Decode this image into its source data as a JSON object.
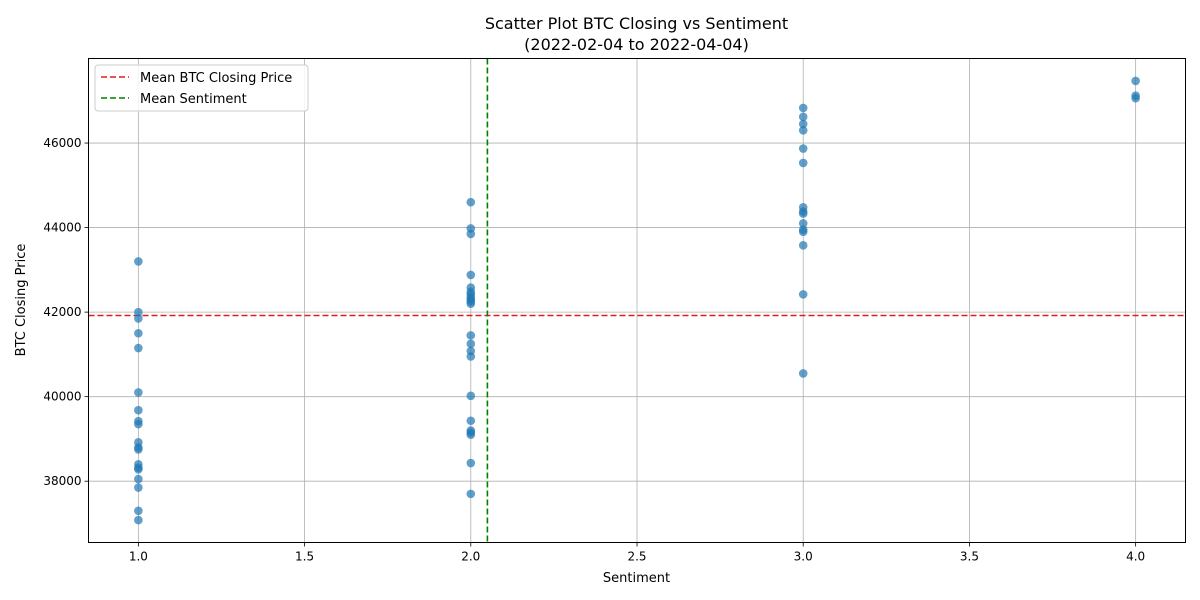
{
  "chart_data": {
    "type": "scatter",
    "title": "Scatter Plot BTC Closing vs Sentiment",
    "subtitle": "(2022-02-04 to 2022-04-04)",
    "xlabel": "Sentiment",
    "ylabel": "BTC Closing Price",
    "xlim": [
      0.85,
      4.15
    ],
    "ylim": [
      36550,
      48000
    ],
    "x_ticks": [
      1.0,
      1.5,
      2.0,
      2.5,
      3.0,
      3.5,
      4.0
    ],
    "x_tick_labels": [
      "1.0",
      "1.5",
      "2.0",
      "2.5",
      "3.0",
      "3.5",
      "4.0"
    ],
    "y_ticks": [
      38000,
      40000,
      42000,
      44000,
      46000
    ],
    "y_tick_labels": [
      "38000",
      "40000",
      "42000",
      "44000",
      "46000"
    ],
    "grid": true,
    "legend_position": "top-left",
    "series": [
      {
        "color": "#1f77b4",
        "points": [
          {
            "x": 1,
            "y": 43200
          },
          {
            "x": 1,
            "y": 42000
          },
          {
            "x": 1,
            "y": 41850
          },
          {
            "x": 1,
            "y": 41500
          },
          {
            "x": 1,
            "y": 41150
          },
          {
            "x": 1,
            "y": 40100
          },
          {
            "x": 1,
            "y": 39680
          },
          {
            "x": 1,
            "y": 39420
          },
          {
            "x": 1,
            "y": 39350
          },
          {
            "x": 1,
            "y": 38920
          },
          {
            "x": 1,
            "y": 38800
          },
          {
            "x": 1,
            "y": 38750
          },
          {
            "x": 1,
            "y": 38400
          },
          {
            "x": 1,
            "y": 38320
          },
          {
            "x": 1,
            "y": 38280
          },
          {
            "x": 1,
            "y": 38050
          },
          {
            "x": 1,
            "y": 37850
          },
          {
            "x": 1,
            "y": 37300
          },
          {
            "x": 1,
            "y": 37080
          },
          {
            "x": 2,
            "y": 44600
          },
          {
            "x": 2,
            "y": 43980
          },
          {
            "x": 2,
            "y": 43850
          },
          {
            "x": 2,
            "y": 42880
          },
          {
            "x": 2,
            "y": 42580
          },
          {
            "x": 2,
            "y": 42480
          },
          {
            "x": 2,
            "y": 42420
          },
          {
            "x": 2,
            "y": 42350
          },
          {
            "x": 2,
            "y": 42300
          },
          {
            "x": 2,
            "y": 42250
          },
          {
            "x": 2,
            "y": 42200
          },
          {
            "x": 2,
            "y": 41450
          },
          {
            "x": 2,
            "y": 41250
          },
          {
            "x": 2,
            "y": 41080
          },
          {
            "x": 2,
            "y": 40950
          },
          {
            "x": 2,
            "y": 40020
          },
          {
            "x": 2,
            "y": 39430
          },
          {
            "x": 2,
            "y": 39200
          },
          {
            "x": 2,
            "y": 39150
          },
          {
            "x": 2,
            "y": 39100
          },
          {
            "x": 2,
            "y": 38430
          },
          {
            "x": 2,
            "y": 37700
          },
          {
            "x": 3,
            "y": 46830
          },
          {
            "x": 3,
            "y": 46620
          },
          {
            "x": 3,
            "y": 46450
          },
          {
            "x": 3,
            "y": 46300
          },
          {
            "x": 3,
            "y": 45870
          },
          {
            "x": 3,
            "y": 45530
          },
          {
            "x": 3,
            "y": 44480
          },
          {
            "x": 3,
            "y": 44380
          },
          {
            "x": 3,
            "y": 44330
          },
          {
            "x": 3,
            "y": 44100
          },
          {
            "x": 3,
            "y": 43950
          },
          {
            "x": 3,
            "y": 43900
          },
          {
            "x": 3,
            "y": 43580
          },
          {
            "x": 3,
            "y": 42420
          },
          {
            "x": 3,
            "y": 40550
          },
          {
            "x": 4,
            "y": 47470
          },
          {
            "x": 4,
            "y": 47120
          },
          {
            "x": 4,
            "y": 47060
          }
        ]
      }
    ],
    "reference_lines": [
      {
        "orientation": "horizontal",
        "value": 41920,
        "color": "#d62728",
        "style": "dashed",
        "label": "Mean BTC Closing Price",
        "stroke": "#e41a1c"
      },
      {
        "orientation": "vertical",
        "value": 2.05,
        "color": "#2ca02c",
        "style": "dashed",
        "label": "Mean Sentiment",
        "stroke": "#008000"
      }
    ]
  }
}
